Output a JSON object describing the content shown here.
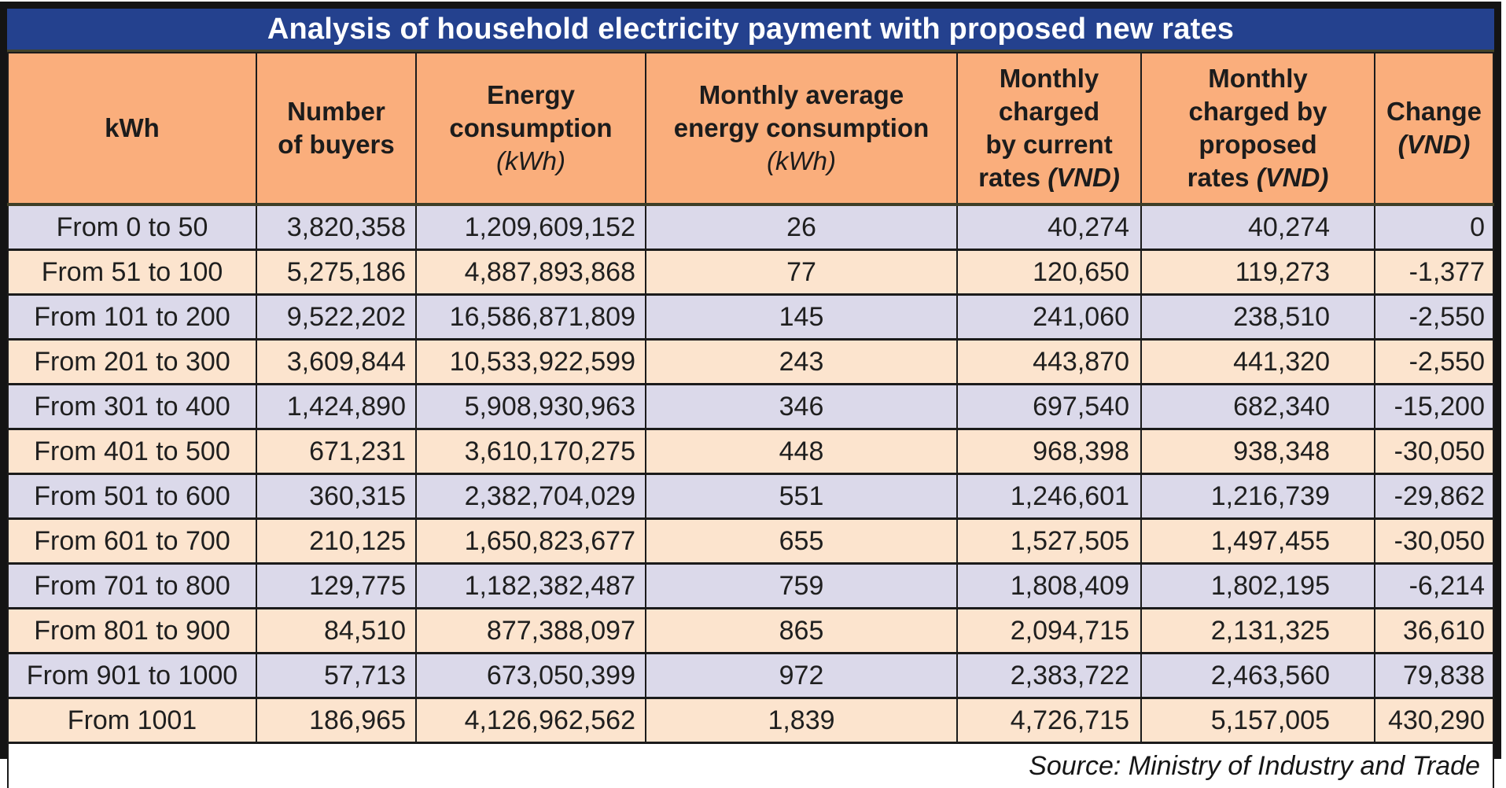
{
  "title": "Analysis of household electricity payment with proposed new rates",
  "source": "Source: Ministry of Industry and Trade",
  "colors": {
    "title_bar": "#24418E",
    "header_bg": "#FAAE7C",
    "row_alt1": "#DBD9EA",
    "row_alt2": "#FCE4CE",
    "border": "#1B1B1B"
  },
  "table": {
    "headers": [
      {
        "label": "kWh",
        "unit": ""
      },
      {
        "label": "Number\nof buyers",
        "unit": ""
      },
      {
        "label": "Energy\nconsumption",
        "unit": "(kWh)"
      },
      {
        "label": "Monthly average\nenergy consumption",
        "unit": "(kWh)"
      },
      {
        "label": "Monthly\ncharged\nby current\nrates",
        "unit": "(VND)"
      },
      {
        "label": "Monthly\ncharged by\nproposed\nrates",
        "unit": "(VND)"
      },
      {
        "label": "Change",
        "unit": "(VND)"
      }
    ],
    "rows": [
      [
        "From 0 to 50",
        "3,820,358",
        "1,209,609,152",
        "26",
        "40,274",
        "40,274",
        "0"
      ],
      [
        "From 51 to 100",
        "5,275,186",
        "4,887,893,868",
        "77",
        "120,650",
        "119,273",
        "-1,377"
      ],
      [
        "From 101 to 200",
        "9,522,202",
        "16,586,871,809",
        "145",
        "241,060",
        "238,510",
        "-2,550"
      ],
      [
        "From 201 to 300",
        "3,609,844",
        "10,533,922,599",
        "243",
        "443,870",
        "441,320",
        "-2,550"
      ],
      [
        "From 301 to 400",
        "1,424,890",
        "5,908,930,963",
        "346",
        "697,540",
        "682,340",
        "-15,200"
      ],
      [
        "From 401 to 500",
        "671,231",
        "3,610,170,275",
        "448",
        "968,398",
        "938,348",
        "-30,050"
      ],
      [
        "From 501 to 600",
        "360,315",
        "2,382,704,029",
        "551",
        "1,246,601",
        "1,216,739",
        "-29,862"
      ],
      [
        "From 601 to 700",
        "210,125",
        "1,650,823,677",
        "655",
        "1,527,505",
        "1,497,455",
        "-30,050"
      ],
      [
        "From 701 to 800",
        "129,775",
        "1,182,382,487",
        "759",
        "1,808,409",
        "1,802,195",
        "-6,214"
      ],
      [
        "From 801 to 900",
        "84,510",
        "877,388,097",
        "865",
        "2,094,715",
        "2,131,325",
        "36,610"
      ],
      [
        "From 901 to 1000",
        "57,713",
        "673,050,399",
        "972",
        "2,383,722",
        "2,463,560",
        "79,838"
      ],
      [
        "From 1001",
        "186,965",
        "4,126,962,562",
        "1,839",
        "4,726,715",
        "5,157,005",
        "430,290"
      ]
    ]
  },
  "chart_data": {
    "type": "table",
    "title": "Analysis of household electricity payment with proposed new rates",
    "columns": [
      "kWh",
      "Number of buyers",
      "Energy consumption (kWh)",
      "Monthly average energy consumption (kWh)",
      "Monthly charged by current rates (VND)",
      "Monthly charged by proposed rates (VND)",
      "Change (VND)"
    ],
    "rows": [
      {
        "kwh_range": "From 0 to 50",
        "buyers": 3820358,
        "energy_consumption_kwh": 1209609152,
        "monthly_avg_kwh": 26,
        "current_rate_vnd": 40274,
        "proposed_rate_vnd": 40274,
        "change_vnd": 0
      },
      {
        "kwh_range": "From 51 to 100",
        "buyers": 5275186,
        "energy_consumption_kwh": 4887893868,
        "monthly_avg_kwh": 77,
        "current_rate_vnd": 120650,
        "proposed_rate_vnd": 119273,
        "change_vnd": -1377
      },
      {
        "kwh_range": "From 101 to 200",
        "buyers": 9522202,
        "energy_consumption_kwh": 16586871809,
        "monthly_avg_kwh": 145,
        "current_rate_vnd": 241060,
        "proposed_rate_vnd": 238510,
        "change_vnd": -2550
      },
      {
        "kwh_range": "From 201 to 300",
        "buyers": 3609844,
        "energy_consumption_kwh": 10533922599,
        "monthly_avg_kwh": 243,
        "current_rate_vnd": 443870,
        "proposed_rate_vnd": 441320,
        "change_vnd": -2550
      },
      {
        "kwh_range": "From 301 to 400",
        "buyers": 1424890,
        "energy_consumption_kwh": 5908930963,
        "monthly_avg_kwh": 346,
        "current_rate_vnd": 697540,
        "proposed_rate_vnd": 682340,
        "change_vnd": -15200
      },
      {
        "kwh_range": "From 401 to 500",
        "buyers": 671231,
        "energy_consumption_kwh": 3610170275,
        "monthly_avg_kwh": 448,
        "current_rate_vnd": 968398,
        "proposed_rate_vnd": 938348,
        "change_vnd": -30050
      },
      {
        "kwh_range": "From 501 to 600",
        "buyers": 360315,
        "energy_consumption_kwh": 2382704029,
        "monthly_avg_kwh": 551,
        "current_rate_vnd": 1246601,
        "proposed_rate_vnd": 1216739,
        "change_vnd": -29862
      },
      {
        "kwh_range": "From 601 to 700",
        "buyers": 210125,
        "energy_consumption_kwh": 1650823677,
        "monthly_avg_kwh": 655,
        "current_rate_vnd": 1527505,
        "proposed_rate_vnd": 1497455,
        "change_vnd": -30050
      },
      {
        "kwh_range": "From 701 to 800",
        "buyers": 129775,
        "energy_consumption_kwh": 1182382487,
        "monthly_avg_kwh": 759,
        "current_rate_vnd": 1808409,
        "proposed_rate_vnd": 1802195,
        "change_vnd": -6214
      },
      {
        "kwh_range": "From 801 to 900",
        "buyers": 84510,
        "energy_consumption_kwh": 877388097,
        "monthly_avg_kwh": 865,
        "current_rate_vnd": 2094715,
        "proposed_rate_vnd": 2131325,
        "change_vnd": 36610
      },
      {
        "kwh_range": "From 901 to 1000",
        "buyers": 57713,
        "energy_consumption_kwh": 673050399,
        "monthly_avg_kwh": 972,
        "current_rate_vnd": 2383722,
        "proposed_rate_vnd": 2463560,
        "change_vnd": 79838
      },
      {
        "kwh_range": "From 1001",
        "buyers": 186965,
        "energy_consumption_kwh": 4126962562,
        "monthly_avg_kwh": 1839,
        "current_rate_vnd": 4726715,
        "proposed_rate_vnd": 5157005,
        "change_vnd": 430290
      }
    ],
    "source": "Source: Ministry of Industry and Trade"
  }
}
